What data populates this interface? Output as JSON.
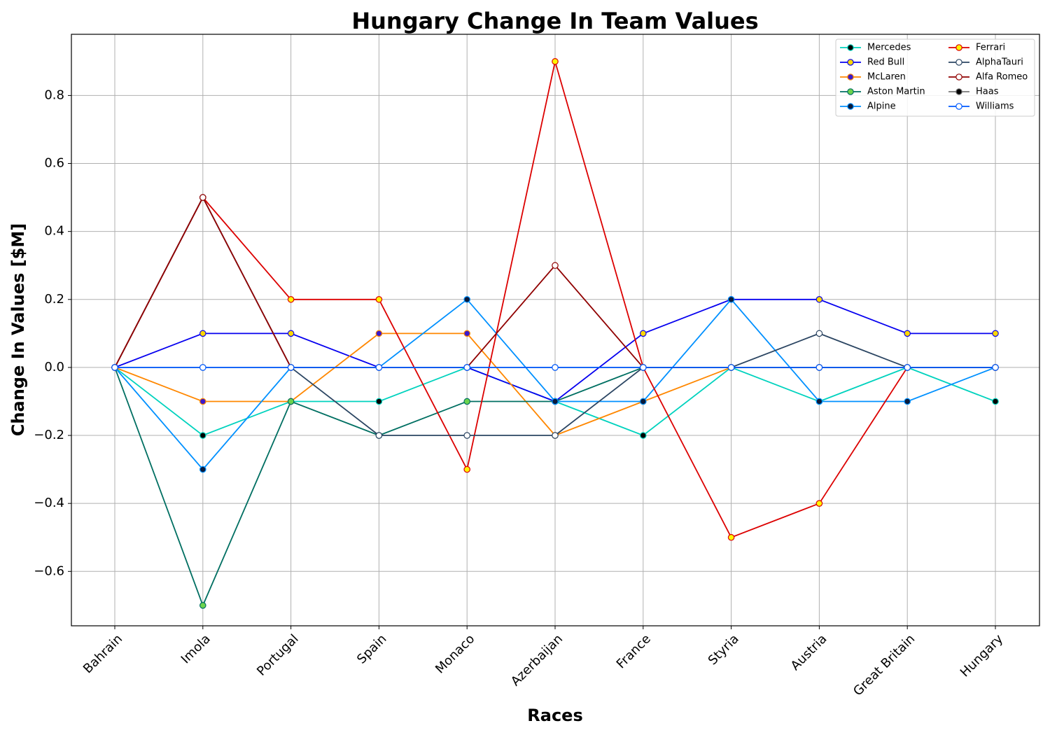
{
  "chart_data": {
    "type": "line",
    "title": "Hungary Change In Team Values",
    "xlabel": "Races",
    "ylabel": "Change In Values [$M]",
    "categories": [
      "Bahrain",
      "Imola",
      "Portugal",
      "Spain",
      "Monaco",
      "Azerbaijan",
      "France",
      "Styria",
      "Austria",
      "Great Britain",
      "Hungary"
    ],
    "ylim": [
      -0.76,
      0.98
    ],
    "yticks": [
      -0.6,
      -0.4,
      -0.2,
      0.0,
      0.2,
      0.4,
      0.6,
      0.8
    ],
    "ytick_labels": [
      "−0.6",
      "−0.4",
      "−0.2",
      "0.0",
      "0.2",
      "0.4",
      "0.6",
      "0.8"
    ],
    "grid": true,
    "legend_position": "top-right",
    "series": [
      {
        "name": "Mercedes",
        "color": "#00D2BE",
        "marker_color": "#000000",
        "values": [
          0,
          -0.2,
          -0.1,
          -0.1,
          0,
          -0.1,
          -0.2,
          0,
          -0.1,
          0,
          -0.1
        ]
      },
      {
        "name": "Red Bull",
        "color": "#0600EF",
        "marker_color": "#FFD700",
        "values": [
          0,
          0.1,
          0.1,
          0,
          0,
          -0.1,
          0.1,
          0.2,
          0.2,
          0.1,
          0.1
        ]
      },
      {
        "name": "McLaren",
        "color": "#FF8700",
        "marker_color": "#3a1acd",
        "values": [
          0,
          -0.1,
          -0.1,
          0.1,
          0.1,
          -0.2,
          -0.1,
          0,
          0,
          0,
          0
        ]
      },
      {
        "name": "Aston Martin",
        "color": "#006F62",
        "marker_color": "#6CD34D",
        "values": [
          0,
          -0.7,
          -0.1,
          -0.2,
          -0.1,
          -0.1,
          0,
          0,
          0,
          0,
          0
        ]
      },
      {
        "name": "Alpine",
        "color": "#0090FF",
        "marker_color": "#0a1a3a",
        "values": [
          0,
          -0.3,
          0,
          0,
          0.2,
          -0.1,
          -0.1,
          0.2,
          -0.1,
          -0.1,
          0
        ]
      },
      {
        "name": "Ferrari",
        "color": "#DC0000",
        "marker_color": "#FFF500",
        "values": [
          0,
          0.5,
          0.2,
          0.2,
          -0.3,
          0.9,
          0,
          -0.5,
          -0.4,
          0,
          0
        ]
      },
      {
        "name": "AlphaTauri",
        "color": "#2B4562",
        "marker_color": "#FFFFFF",
        "values": [
          0,
          0.5,
          0,
          -0.2,
          -0.2,
          -0.2,
          0,
          0,
          0.1,
          0,
          0
        ]
      },
      {
        "name": "Alfa Romeo",
        "color": "#900000",
        "marker_color": "#FFFFFF",
        "values": [
          0,
          0.5,
          0,
          0,
          0,
          0.3,
          0,
          0,
          0,
          0,
          0
        ]
      },
      {
        "name": "Haas",
        "color": "#787878",
        "marker_color": "#000000",
        "values": [
          0,
          0,
          0,
          0,
          0,
          0,
          0,
          0,
          0,
          0,
          0
        ]
      },
      {
        "name": "Williams",
        "color": "#005AFF",
        "marker_color": "#FFFFFF",
        "values": [
          0,
          0,
          0,
          0,
          0,
          0,
          0,
          0,
          0,
          0,
          0
        ]
      }
    ]
  }
}
